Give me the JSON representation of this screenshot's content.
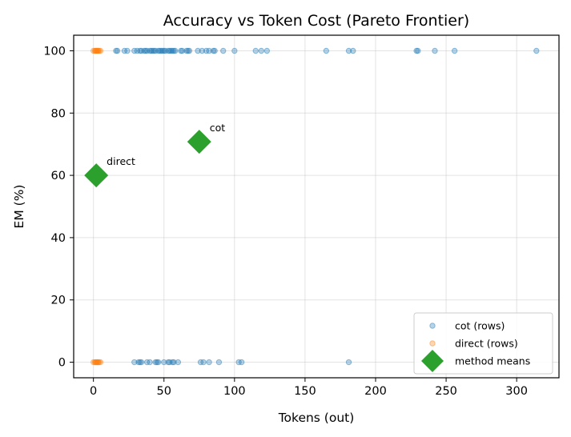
{
  "chart_data": {
    "type": "scatter",
    "title": "Accuracy vs Token Cost (Pareto Frontier)",
    "xlabel": "Tokens (out)",
    "ylabel": "EM (%)",
    "xlim": [
      -14,
      330
    ],
    "ylim": [
      -5,
      105
    ],
    "xticks": [
      0,
      50,
      100,
      150,
      200,
      250,
      300
    ],
    "yticks": [
      0,
      20,
      40,
      60,
      80,
      100
    ],
    "grid": true,
    "legend_position": "lower-right",
    "colors": {
      "cot": "#1f77b4",
      "direct": "#ff7f0e",
      "means": "#2ca02c"
    },
    "series": [
      {
        "name": "cot (rows)",
        "marker": "circle",
        "color": "#1f77b4",
        "points": [
          [
            16,
            100
          ],
          [
            17,
            100
          ],
          [
            22,
            100
          ],
          [
            24,
            100
          ],
          [
            29,
            100
          ],
          [
            31,
            100
          ],
          [
            33,
            100
          ],
          [
            34,
            100
          ],
          [
            36,
            100
          ],
          [
            37,
            100
          ],
          [
            38,
            100
          ],
          [
            40,
            100
          ],
          [
            41,
            100
          ],
          [
            42,
            100
          ],
          [
            43,
            100
          ],
          [
            44,
            100
          ],
          [
            46,
            100
          ],
          [
            47,
            100
          ],
          [
            48,
            100
          ],
          [
            49,
            100
          ],
          [
            50,
            100
          ],
          [
            51,
            100
          ],
          [
            53,
            100
          ],
          [
            54,
            100
          ],
          [
            55,
            100
          ],
          [
            56,
            100
          ],
          [
            57,
            100
          ],
          [
            58,
            100
          ],
          [
            62,
            100
          ],
          [
            63,
            100
          ],
          [
            66,
            100
          ],
          [
            67,
            100
          ],
          [
            68,
            100
          ],
          [
            74,
            100
          ],
          [
            77,
            100
          ],
          [
            80,
            100
          ],
          [
            82,
            100
          ],
          [
            85,
            100
          ],
          [
            86,
            100
          ],
          [
            92,
            100
          ],
          [
            100,
            100
          ],
          [
            115,
            100
          ],
          [
            119,
            100
          ],
          [
            123,
            100
          ],
          [
            165,
            100
          ],
          [
            181,
            100
          ],
          [
            184,
            100
          ],
          [
            229,
            100
          ],
          [
            230,
            100
          ],
          [
            242,
            100
          ],
          [
            256,
            100
          ],
          [
            314,
            100
          ],
          [
            29,
            0
          ],
          [
            32,
            0
          ],
          [
            33,
            0
          ],
          [
            34,
            0
          ],
          [
            38,
            0
          ],
          [
            40,
            0
          ],
          [
            44,
            0
          ],
          [
            45,
            0
          ],
          [
            46,
            0
          ],
          [
            50,
            0
          ],
          [
            53,
            0
          ],
          [
            54,
            0
          ],
          [
            56,
            0
          ],
          [
            57,
            0
          ],
          [
            60,
            0
          ],
          [
            76,
            0
          ],
          [
            78,
            0
          ],
          [
            82,
            0
          ],
          [
            89,
            0
          ],
          [
            103,
            0
          ],
          [
            105,
            0
          ],
          [
            181,
            0
          ]
        ]
      },
      {
        "name": "direct (rows)",
        "marker": "circle",
        "color": "#ff7f0e",
        "points": [
          [
            0,
            100
          ],
          [
            1,
            100
          ],
          [
            1.5,
            100
          ],
          [
            2,
            100
          ],
          [
            2.5,
            100
          ],
          [
            3,
            100
          ],
          [
            3.5,
            100
          ],
          [
            4,
            100
          ],
          [
            5,
            100
          ],
          [
            0,
            0
          ],
          [
            1,
            0
          ],
          [
            1.5,
            0
          ],
          [
            2,
            0
          ],
          [
            2.5,
            0
          ],
          [
            3,
            0
          ],
          [
            3.5,
            0
          ],
          [
            4,
            0
          ],
          [
            5,
            0
          ]
        ]
      },
      {
        "name": "method means",
        "marker": "diamond",
        "color": "#2ca02c",
        "points": [
          [
            2,
            60
          ],
          [
            75,
            70.8
          ]
        ]
      }
    ],
    "annotations": [
      {
        "text": "direct",
        "x": 2,
        "y": 60
      },
      {
        "text": "cot",
        "x": 75,
        "y": 70.8
      }
    ]
  }
}
